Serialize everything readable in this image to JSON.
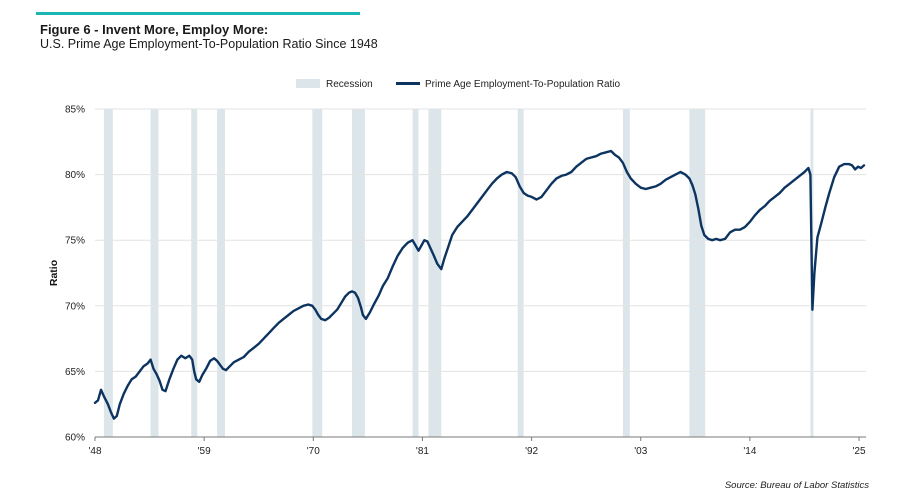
{
  "header": {
    "title": "Figure 6 - Invent More, Employ More:",
    "subtitle": "U.S. Prime Age Employment-To-Population Ratio Since 1948",
    "accent_color": "#1ab6b6"
  },
  "footer": {
    "source": "Source: Bureau of Labor Statistics"
  },
  "chart_data": {
    "type": "line",
    "title": "",
    "xlabel": "",
    "ylabel": "Ratio",
    "xlim": [
      1948,
      2025.7
    ],
    "ylim": [
      60,
      85
    ],
    "y_ticks": [
      60,
      65,
      70,
      75,
      80,
      85
    ],
    "y_tick_labels": [
      "60%",
      "65%",
      "70%",
      "75%",
      "80%",
      "85%"
    ],
    "x_ticks": [
      1948,
      1959,
      1970,
      1981,
      1992,
      2003,
      2014,
      2025
    ],
    "x_tick_labels": [
      "'48",
      "'59",
      "'70",
      "'81",
      "'92",
      "'03",
      "'14",
      "'25"
    ],
    "grid": "horizontal",
    "legend_position": "top-center",
    "legend": [
      {
        "name": "Recession",
        "color": "#dce6ea",
        "kind": "patch"
      },
      {
        "name": "Prime Age Employment-To-Population Ratio",
        "color": "#0d3460",
        "kind": "line"
      }
    ],
    "recessions": [
      [
        1948.9,
        1949.8
      ],
      [
        1953.6,
        1954.4
      ],
      [
        1957.7,
        1958.3
      ],
      [
        1960.3,
        1961.1
      ],
      [
        1969.9,
        1970.9
      ],
      [
        1973.9,
        1975.2
      ],
      [
        1980.0,
        1980.6
      ],
      [
        1981.6,
        1982.9
      ],
      [
        1990.6,
        1991.2
      ],
      [
        2001.2,
        2001.9
      ],
      [
        2007.9,
        2009.5
      ],
      [
        2020.1,
        2020.4
      ]
    ],
    "series": [
      {
        "name": "Prime Age Employment-To-Population Ratio",
        "color": "#0d3460",
        "points": [
          [
            1948.0,
            62.6
          ],
          [
            1948.3,
            62.8
          ],
          [
            1948.6,
            63.6
          ],
          [
            1948.9,
            63.1
          ],
          [
            1949.3,
            62.5
          ],
          [
            1949.6,
            61.9
          ],
          [
            1949.9,
            61.4
          ],
          [
            1950.2,
            61.6
          ],
          [
            1950.5,
            62.5
          ],
          [
            1950.9,
            63.3
          ],
          [
            1951.3,
            63.9
          ],
          [
            1951.7,
            64.4
          ],
          [
            1952.1,
            64.6
          ],
          [
            1952.5,
            65.0
          ],
          [
            1952.9,
            65.4
          ],
          [
            1953.3,
            65.6
          ],
          [
            1953.6,
            65.9
          ],
          [
            1953.9,
            65.2
          ],
          [
            1954.2,
            64.8
          ],
          [
            1954.5,
            64.3
          ],
          [
            1954.8,
            63.6
          ],
          [
            1955.1,
            63.5
          ],
          [
            1955.5,
            64.4
          ],
          [
            1955.9,
            65.2
          ],
          [
            1956.3,
            65.9
          ],
          [
            1956.7,
            66.2
          ],
          [
            1957.1,
            66.0
          ],
          [
            1957.5,
            66.2
          ],
          [
            1957.8,
            65.9
          ],
          [
            1958.0,
            65.0
          ],
          [
            1958.2,
            64.4
          ],
          [
            1958.5,
            64.2
          ],
          [
            1958.8,
            64.7
          ],
          [
            1959.2,
            65.2
          ],
          [
            1959.6,
            65.8
          ],
          [
            1960.0,
            66.0
          ],
          [
            1960.3,
            65.8
          ],
          [
            1960.6,
            65.5
          ],
          [
            1960.9,
            65.2
          ],
          [
            1961.2,
            65.1
          ],
          [
            1961.6,
            65.4
          ],
          [
            1962.0,
            65.7
          ],
          [
            1962.5,
            65.9
          ],
          [
            1963.0,
            66.1
          ],
          [
            1963.5,
            66.5
          ],
          [
            1964.0,
            66.8
          ],
          [
            1964.5,
            67.1
          ],
          [
            1965.0,
            67.5
          ],
          [
            1965.5,
            67.9
          ],
          [
            1966.0,
            68.3
          ],
          [
            1966.5,
            68.7
          ],
          [
            1967.0,
            69.0
          ],
          [
            1967.5,
            69.3
          ],
          [
            1968.0,
            69.6
          ],
          [
            1968.5,
            69.8
          ],
          [
            1969.0,
            70.0
          ],
          [
            1969.5,
            70.1
          ],
          [
            1969.9,
            70.0
          ],
          [
            1970.2,
            69.7
          ],
          [
            1970.5,
            69.3
          ],
          [
            1970.8,
            69.0
          ],
          [
            1971.2,
            68.9
          ],
          [
            1971.6,
            69.1
          ],
          [
            1972.0,
            69.4
          ],
          [
            1972.4,
            69.7
          ],
          [
            1972.8,
            70.2
          ],
          [
            1973.2,
            70.7
          ],
          [
            1973.6,
            71.0
          ],
          [
            1973.9,
            71.1
          ],
          [
            1974.2,
            71.0
          ],
          [
            1974.5,
            70.6
          ],
          [
            1974.8,
            69.9
          ],
          [
            1975.0,
            69.3
          ],
          [
            1975.3,
            69.0
          ],
          [
            1975.7,
            69.5
          ],
          [
            1976.1,
            70.1
          ],
          [
            1976.6,
            70.8
          ],
          [
            1977.0,
            71.5
          ],
          [
            1977.5,
            72.1
          ],
          [
            1978.0,
            73.0
          ],
          [
            1978.5,
            73.8
          ],
          [
            1979.0,
            74.4
          ],
          [
            1979.5,
            74.8
          ],
          [
            1980.0,
            75.0
          ],
          [
            1980.3,
            74.6
          ],
          [
            1980.6,
            74.2
          ],
          [
            1980.9,
            74.6
          ],
          [
            1981.2,
            75.0
          ],
          [
            1981.5,
            74.9
          ],
          [
            1981.8,
            74.4
          ],
          [
            1982.1,
            73.9
          ],
          [
            1982.5,
            73.2
          ],
          [
            1982.9,
            72.8
          ],
          [
            1983.2,
            73.6
          ],
          [
            1983.6,
            74.5
          ],
          [
            1984.0,
            75.4
          ],
          [
            1984.5,
            76.0
          ],
          [
            1985.0,
            76.4
          ],
          [
            1985.5,
            76.8
          ],
          [
            1986.0,
            77.3
          ],
          [
            1986.5,
            77.8
          ],
          [
            1987.0,
            78.3
          ],
          [
            1987.5,
            78.8
          ],
          [
            1988.0,
            79.3
          ],
          [
            1988.5,
            79.7
          ],
          [
            1989.0,
            80.0
          ],
          [
            1989.5,
            80.2
          ],
          [
            1990.0,
            80.1
          ],
          [
            1990.4,
            79.8
          ],
          [
            1990.8,
            79.1
          ],
          [
            1991.2,
            78.6
          ],
          [
            1991.6,
            78.4
          ],
          [
            1992.0,
            78.3
          ],
          [
            1992.5,
            78.1
          ],
          [
            1993.0,
            78.3
          ],
          [
            1993.5,
            78.8
          ],
          [
            1994.0,
            79.3
          ],
          [
            1994.5,
            79.7
          ],
          [
            1995.0,
            79.9
          ],
          [
            1995.5,
            80.0
          ],
          [
            1996.0,
            80.2
          ],
          [
            1996.5,
            80.6
          ],
          [
            1997.0,
            80.9
          ],
          [
            1997.5,
            81.2
          ],
          [
            1998.0,
            81.3
          ],
          [
            1998.5,
            81.4
          ],
          [
            1999.0,
            81.6
          ],
          [
            1999.5,
            81.7
          ],
          [
            2000.0,
            81.8
          ],
          [
            2000.4,
            81.5
          ],
          [
            2000.8,
            81.3
          ],
          [
            2001.2,
            80.9
          ],
          [
            2001.6,
            80.2
          ],
          [
            2002.0,
            79.7
          ],
          [
            2002.5,
            79.3
          ],
          [
            2003.0,
            79.0
          ],
          [
            2003.5,
            78.9
          ],
          [
            2004.0,
            79.0
          ],
          [
            2004.5,
            79.1
          ],
          [
            2005.0,
            79.3
          ],
          [
            2005.5,
            79.6
          ],
          [
            2006.0,
            79.8
          ],
          [
            2006.5,
            80.0
          ],
          [
            2007.0,
            80.2
          ],
          [
            2007.5,
            80.0
          ],
          [
            2007.9,
            79.7
          ],
          [
            2008.2,
            79.2
          ],
          [
            2008.5,
            78.5
          ],
          [
            2008.8,
            77.4
          ],
          [
            2009.1,
            76.1
          ],
          [
            2009.4,
            75.4
          ],
          [
            2009.8,
            75.1
          ],
          [
            2010.2,
            75.0
          ],
          [
            2010.6,
            75.1
          ],
          [
            2011.0,
            75.0
          ],
          [
            2011.5,
            75.1
          ],
          [
            2012.0,
            75.6
          ],
          [
            2012.5,
            75.8
          ],
          [
            2013.0,
            75.8
          ],
          [
            2013.5,
            76.0
          ],
          [
            2014.0,
            76.4
          ],
          [
            2014.5,
            76.9
          ],
          [
            2015.0,
            77.3
          ],
          [
            2015.5,
            77.6
          ],
          [
            2016.0,
            78.0
          ],
          [
            2016.5,
            78.3
          ],
          [
            2017.0,
            78.6
          ],
          [
            2017.5,
            79.0
          ],
          [
            2018.0,
            79.3
          ],
          [
            2018.5,
            79.6
          ],
          [
            2019.0,
            79.9
          ],
          [
            2019.5,
            80.2
          ],
          [
            2019.9,
            80.5
          ],
          [
            2020.1,
            80.0
          ],
          [
            2020.3,
            69.7
          ],
          [
            2020.5,
            72.5
          ],
          [
            2020.8,
            75.2
          ],
          [
            2021.2,
            76.3
          ],
          [
            2021.6,
            77.5
          ],
          [
            2022.0,
            78.6
          ],
          [
            2022.5,
            79.8
          ],
          [
            2023.0,
            80.6
          ],
          [
            2023.5,
            80.8
          ],
          [
            2024.0,
            80.8
          ],
          [
            2024.3,
            80.7
          ],
          [
            2024.6,
            80.4
          ],
          [
            2024.9,
            80.6
          ],
          [
            2025.2,
            80.5
          ],
          [
            2025.5,
            80.7
          ]
        ]
      }
    ]
  }
}
